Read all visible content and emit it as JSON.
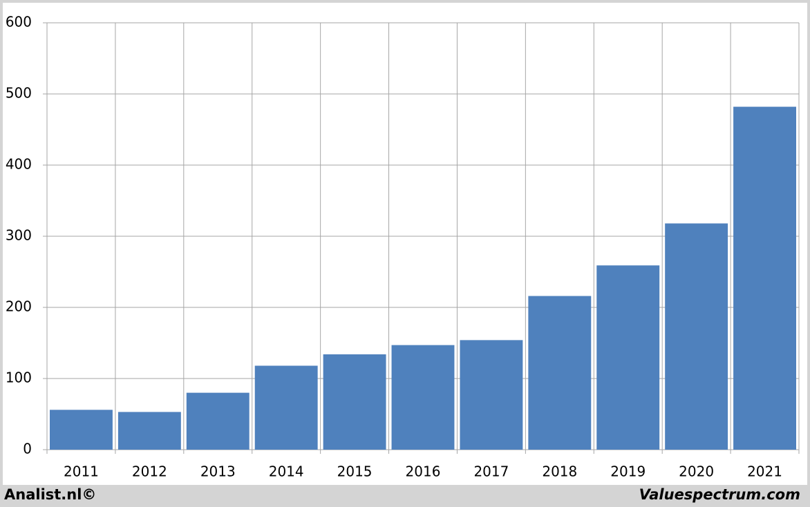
{
  "chart_data": {
    "type": "bar",
    "categories": [
      "2011",
      "2012",
      "2013",
      "2014",
      "2015",
      "2016",
      "2017",
      "2018",
      "2019",
      "2020",
      "2021"
    ],
    "values": [
      56,
      53,
      80,
      118,
      134,
      147,
      154,
      216,
      259,
      318,
      482
    ],
    "color": "#4f81bd",
    "ylim": [
      0,
      600
    ],
    "yticks": [
      0,
      100,
      200,
      300,
      400,
      500,
      600
    ],
    "grid": true,
    "footer_left": "Analist.nl©",
    "footer_right": "Valuespectrum.com"
  }
}
